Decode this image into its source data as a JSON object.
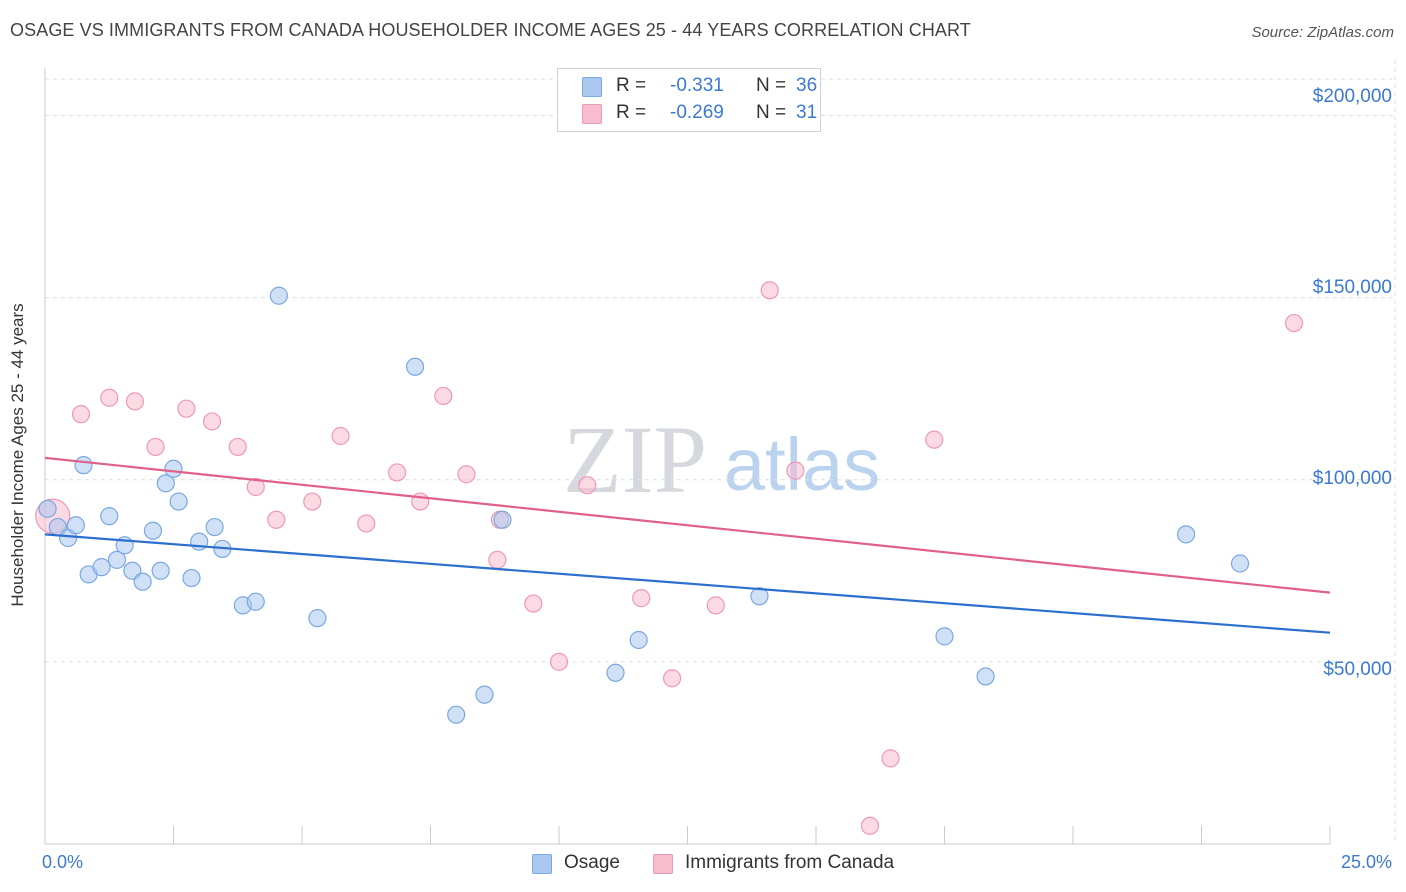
{
  "title": "OSAGE VS IMMIGRANTS FROM CANADA HOUSEHOLDER INCOME AGES 25 - 44 YEARS CORRELATION CHART",
  "source": "Source: ZipAtlas.com",
  "watermark": {
    "zip": "ZIP",
    "atlas": "atlas"
  },
  "legend": {
    "osage": {
      "r_label": "R =",
      "r_value": "-0.331",
      "n_label": "N =",
      "n_value": "36"
    },
    "canada": {
      "r_label": "R =",
      "r_value": "-0.269",
      "n_label": "N =",
      "n_value": "31"
    }
  },
  "bottom_legend": {
    "osage": "Osage",
    "canada": "Immigrants from Canada"
  },
  "colors": {
    "osage_fill": "#aac8f0",
    "osage_stroke": "#7aa8e0",
    "osage_line": "#2d6fce",
    "canada_fill": "#f7bccd",
    "canada_stroke": "#ee99b4",
    "canada_line": "#e0608c",
    "tick_text": "#3b79d0"
  },
  "chart_data": {
    "type": "scatter",
    "title": "OSAGE VS IMMIGRANTS FROM CANADA HOUSEHOLDER INCOME AGES 25 - 44 YEARS CORRELATION CHART",
    "xlabel": "",
    "ylabel": "Householder Income Ages 25 - 44 years",
    "xlim": [
      0,
      25
    ],
    "ylim": [
      0,
      210000
    ],
    "x_tick_labels": [
      "0.0%",
      "25.0%"
    ],
    "y_ticks": [
      {
        "value": 200000,
        "label": "$200,000"
      },
      {
        "value": 150000,
        "label": "$150,000"
      },
      {
        "value": 100000,
        "label": "$100,000"
      },
      {
        "value": 50000,
        "label": "$50,000"
      }
    ],
    "series": [
      {
        "name": "Osage",
        "r": -0.331,
        "n": 36,
        "trend": {
          "x": [
            0,
            25
          ],
          "y": [
            85000,
            58000
          ]
        },
        "points": [
          [
            0.05,
            92000
          ],
          [
            0.25,
            87000
          ],
          [
            0.45,
            84000
          ],
          [
            0.6,
            87500
          ],
          [
            0.75,
            104000
          ],
          [
            0.85,
            74000
          ],
          [
            1.1,
            76000
          ],
          [
            1.25,
            90000
          ],
          [
            1.4,
            78000
          ],
          [
            1.55,
            82000
          ],
          [
            1.7,
            75000
          ],
          [
            1.9,
            72000
          ],
          [
            2.1,
            86000
          ],
          [
            2.25,
            75000
          ],
          [
            2.35,
            99000
          ],
          [
            2.5,
            103000
          ],
          [
            2.6,
            94000
          ],
          [
            2.85,
            73000
          ],
          [
            3.0,
            83000
          ],
          [
            3.3,
            87000
          ],
          [
            3.45,
            81000
          ],
          [
            3.85,
            65500
          ],
          [
            4.1,
            66500
          ],
          [
            4.55,
            150500
          ],
          [
            5.3,
            62000
          ],
          [
            7.2,
            131000
          ],
          [
            8.0,
            35500
          ],
          [
            8.55,
            41000
          ],
          [
            8.9,
            89000
          ],
          [
            11.1,
            47000
          ],
          [
            11.55,
            56000
          ],
          [
            13.9,
            68000
          ],
          [
            17.5,
            57000
          ],
          [
            18.3,
            46000
          ],
          [
            22.2,
            85000
          ],
          [
            23.25,
            77000
          ]
        ]
      },
      {
        "name": "Immigrants from Canada",
        "r": -0.269,
        "n": 31,
        "trend": {
          "x": [
            0,
            25
          ],
          "y": [
            106000,
            69000
          ]
        },
        "points": [
          [
            0.15,
            90000
          ],
          [
            0.7,
            118000
          ],
          [
            1.25,
            122500
          ],
          [
            1.75,
            121500
          ],
          [
            2.15,
            109000
          ],
          [
            2.75,
            119500
          ],
          [
            3.25,
            116000
          ],
          [
            3.75,
            109000
          ],
          [
            4.1,
            98000
          ],
          [
            4.5,
            89000
          ],
          [
            5.2,
            94000
          ],
          [
            5.75,
            112000
          ],
          [
            6.25,
            88000
          ],
          [
            6.85,
            102000
          ],
          [
            7.3,
            94000
          ],
          [
            7.75,
            123000
          ],
          [
            8.2,
            101500
          ],
          [
            8.8,
            78000
          ],
          [
            8.85,
            89000
          ],
          [
            9.5,
            66000
          ],
          [
            10.0,
            50000
          ],
          [
            10.55,
            98500
          ],
          [
            11.6,
            67500
          ],
          [
            12.2,
            45500
          ],
          [
            13.05,
            65500
          ],
          [
            14.1,
            152000
          ],
          [
            14.6,
            102500
          ],
          [
            16.05,
            5000
          ],
          [
            16.45,
            23500
          ],
          [
            17.3,
            111000
          ],
          [
            24.3,
            143000
          ]
        ]
      }
    ]
  }
}
